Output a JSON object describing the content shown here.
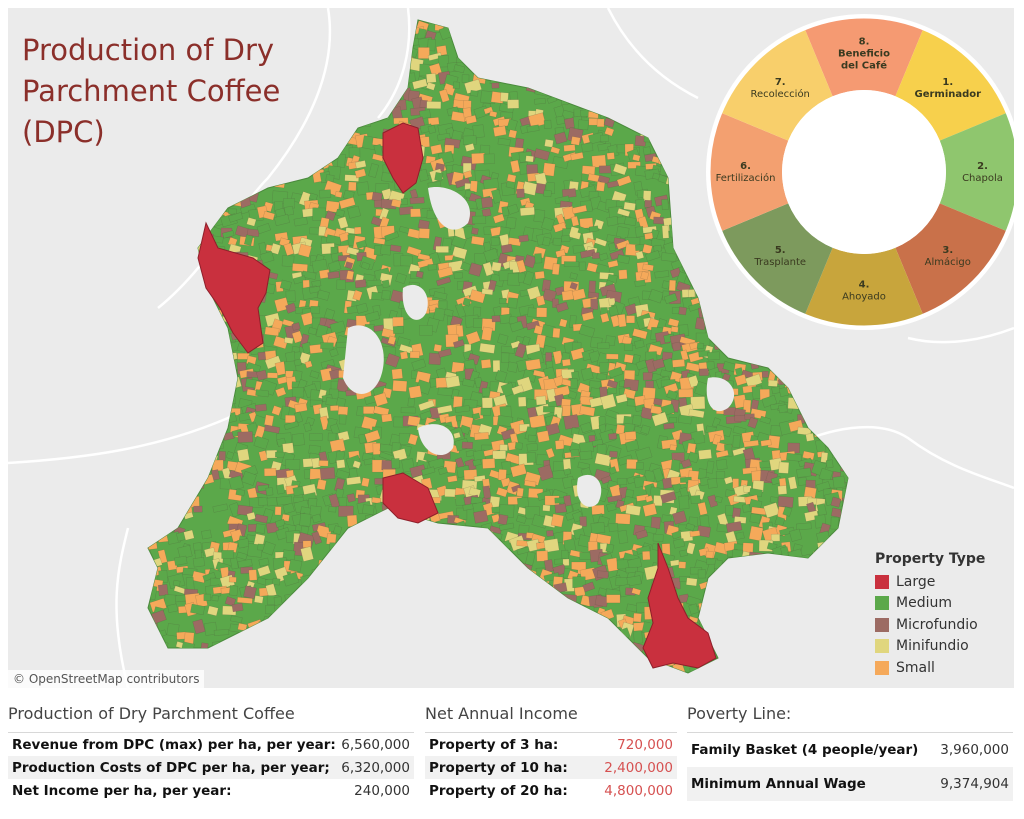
{
  "map": {
    "title": "Production of Dry Parchment Coffee (DPC)",
    "attribution": "© OpenStreetMap contributors",
    "legend": {
      "title": "Property Type",
      "items": [
        {
          "label": "Large",
          "color": "#c9303e"
        },
        {
          "label": "Medium",
          "color": "#5ba84a"
        },
        {
          "label": "Microfundio",
          "color": "#9c6b63"
        },
        {
          "label": "Minifundio",
          "color": "#e0d67e"
        },
        {
          "label": "Small",
          "color": "#f5a95a"
        }
      ]
    },
    "cycle": {
      "stages": [
        {
          "number": "1.",
          "name": "Germinador",
          "color": "#f7d04c"
        },
        {
          "number": "2.",
          "name": "Chapola",
          "color": "#8fc66e"
        },
        {
          "number": "3.",
          "name": "Almácigo",
          "color": "#c9714a"
        },
        {
          "number": "4.",
          "name": "Ahoyado",
          "color": "#c8a53c"
        },
        {
          "number": "5.",
          "name": "Trasplante",
          "color": "#7d9a5d"
        },
        {
          "number": "6.",
          "name": "Fertilización",
          "color": "#f3a070"
        },
        {
          "number": "7.",
          "name": "Recolección",
          "color": "#f8cf6b"
        },
        {
          "number": "8.",
          "name": "Beneficio del Café",
          "color": "#f59a72"
        }
      ]
    }
  },
  "production": {
    "heading": "Production of Dry Parchment Coffee",
    "rows": [
      {
        "label": "Revenue from DPC (max) per ha, per year:",
        "value": "6,560,000"
      },
      {
        "label": "Production Costs of DPC per ha, per year;",
        "value": "6,320,000"
      },
      {
        "label": "Net Income per ha, per year:",
        "value": "240,000"
      }
    ]
  },
  "net_income": {
    "heading": "Net Annual Income",
    "rows": [
      {
        "label": "Property of 3 ha:",
        "value": "720,000"
      },
      {
        "label": "Property of 10 ha:",
        "value": "2,400,000"
      },
      {
        "label": "Property of 20 ha:",
        "value": "4,800,000"
      }
    ]
  },
  "poverty": {
    "heading": "Poverty Line:",
    "rows": [
      {
        "label": "Family Basket (4 people/year)",
        "value": "3,960,000"
      },
      {
        "label": "Minimum Annual Wage",
        "value": "9,374,904"
      }
    ]
  }
}
